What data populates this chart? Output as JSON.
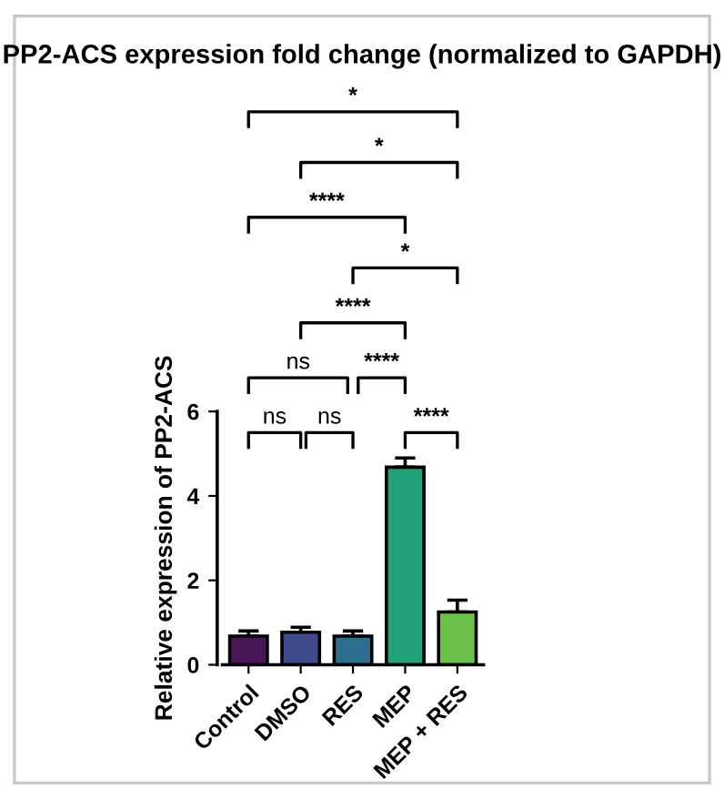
{
  "chart_data": {
    "type": "bar",
    "title": "PP2-ACS expression fold change (normalized to GAPDH)",
    "ylabel": "Relative expression of PP2-ACS",
    "categories": [
      "Control",
      "DMSO",
      "RES",
      "MEP",
      "MEP + RES"
    ],
    "values": [
      0.68,
      0.77,
      0.68,
      4.68,
      1.25
    ],
    "errors": [
      0.12,
      0.12,
      0.12,
      0.22,
      0.28
    ],
    "colors": [
      "#4b1658",
      "#3f4b8c",
      "#2e6e8e",
      "#21a07a",
      "#6cc24a"
    ],
    "ylim": [
      0,
      6
    ],
    "yticks": [
      0,
      2,
      4,
      6
    ],
    "grid": false,
    "legend": false,
    "annotations": [
      "ns",
      "ns",
      "****",
      "ns",
      "****",
      "****",
      "*",
      "****",
      "*",
      "*"
    ]
  }
}
